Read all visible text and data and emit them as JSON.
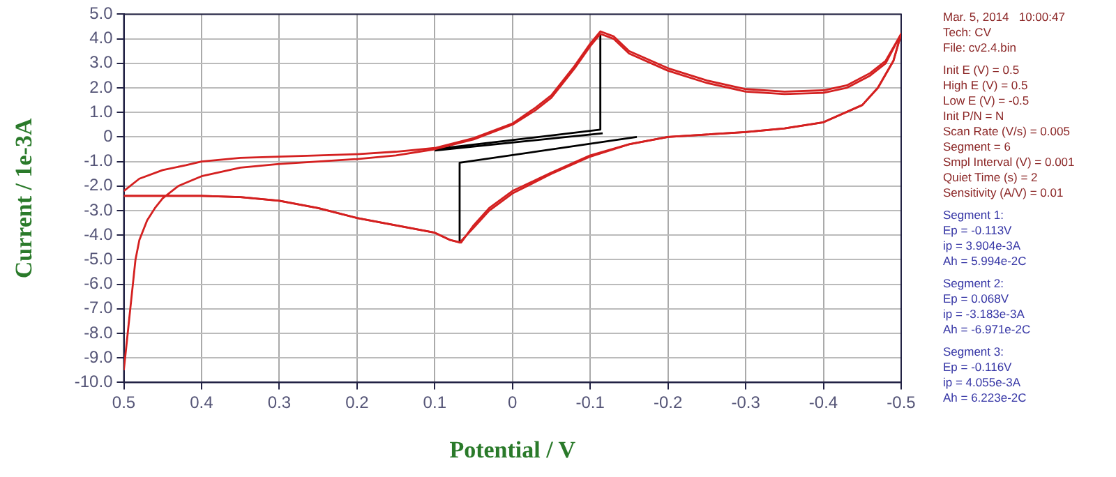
{
  "chart_data": {
    "type": "line",
    "xlabel": "Potential / V",
    "ylabel": "Current / 1e-3A",
    "xlim": [
      0.5,
      -0.5
    ],
    "xticks": [
      0.5,
      0.4,
      0.3,
      0.2,
      0.1,
      0,
      -0.1,
      -0.2,
      -0.3,
      -0.4,
      -0.5
    ],
    "ylim": [
      -10,
      5
    ],
    "yticks": [
      {
        "value": 5,
        "label": "5.0"
      },
      {
        "value": 4,
        "label": "4.0"
      },
      {
        "value": 3,
        "label": "3.0"
      },
      {
        "value": 2,
        "label": "2.0"
      },
      {
        "value": 1,
        "label": "1.0"
      },
      0,
      {
        "value": -1,
        "label": "-1.0"
      },
      {
        "value": -2,
        "label": "-2.0"
      },
      {
        "value": -3,
        "label": "-3.0"
      },
      {
        "value": -4,
        "label": "-4.0"
      },
      {
        "value": -5,
        "label": "-5.0"
      },
      {
        "value": -6,
        "label": "-6.0"
      },
      {
        "value": -7,
        "label": "-7.0"
      },
      {
        "value": -8,
        "label": "-8.0"
      },
      {
        "value": -9,
        "label": "-9.0"
      },
      {
        "value": -10,
        "label": "-10.0"
      }
    ],
    "grid": true,
    "legend": false,
    "marker": "none",
    "line_style": "solid",
    "series": [
      {
        "color": "#d42020",
        "x": [
          0.5,
          0.495,
          0.49,
          0.485,
          0.48,
          0.47,
          0.46,
          0.45,
          0.43,
          0.4,
          0.35,
          0.3,
          0.25,
          0.2,
          0.15,
          0.1,
          0.05,
          0,
          -0.03,
          -0.05,
          -0.08,
          -0.1,
          -0.113,
          -0.13,
          -0.15,
          -0.2,
          -0.25,
          -0.3,
          -0.35,
          -0.4,
          -0.43,
          -0.46,
          -0.48,
          -0.5,
          -0.49,
          -0.47,
          -0.45,
          -0.4,
          -0.35,
          -0.3,
          -0.25,
          -0.2,
          -0.15,
          -0.1,
          -0.05,
          0,
          0.03,
          0.05,
          0.068,
          0.08,
          0.1,
          0.15,
          0.2,
          0.25,
          0.3,
          0.35,
          0.4,
          0.45,
          0.5
        ],
        "values": [
          -9.5,
          -8,
          -6.5,
          -5,
          -4.2,
          -3.4,
          -2.9,
          -2.5,
          -2,
          -1.6,
          -1.25,
          -1.1,
          -1,
          -0.9,
          -0.75,
          -0.5,
          -0.1,
          0.5,
          1.1,
          1.6,
          2.8,
          3.7,
          4.2,
          4,
          3.4,
          2.7,
          2.2,
          1.85,
          1.75,
          1.8,
          2,
          2.5,
          3,
          4.2,
          3.1,
          2,
          1.3,
          0.6,
          0.35,
          0.2,
          0.1,
          0,
          -0.3,
          -0.8,
          -1.5,
          -2.3,
          -3,
          -3.7,
          -4.3,
          -4.2,
          -3.9,
          -3.6,
          -3.3,
          -2.9,
          -2.6,
          -2.45,
          -2.4,
          -2.4,
          -2.4
        ]
      },
      {
        "color": "#d42020",
        "x": [
          0.5,
          0.48,
          0.45,
          0.42,
          0.4,
          0.35,
          0.3,
          0.25,
          0.2,
          0.15,
          0.1,
          0.05,
          0,
          -0.03,
          -0.05,
          -0.08,
          -0.1,
          -0.113,
          -0.13,
          -0.15,
          -0.2,
          -0.25,
          -0.3,
          -0.35,
          -0.4,
          -0.43,
          -0.46,
          -0.48,
          -0.5,
          -0.49,
          -0.47,
          -0.45,
          -0.4,
          -0.35,
          -0.3,
          -0.25,
          -0.2,
          -0.15,
          -0.1,
          -0.05,
          0,
          0.03,
          0.05,
          0.066,
          0.08,
          0.1,
          0.15,
          0.2,
          0.25,
          0.3,
          0.35,
          0.4,
          0.45,
          0.5
        ],
        "values": [
          -2.2,
          -1.7,
          -1.35,
          -1.15,
          -1,
          -0.85,
          -0.8,
          -0.75,
          -0.7,
          -0.6,
          -0.45,
          -0.05,
          0.55,
          1.2,
          1.7,
          2.9,
          3.8,
          4.3,
          4.1,
          3.5,
          2.8,
          2.3,
          1.95,
          1.85,
          1.9,
          2.1,
          2.6,
          3.1,
          4.2,
          3.1,
          2,
          1.3,
          0.6,
          0.35,
          0.2,
          0.1,
          0,
          -0.3,
          -0.75,
          -1.45,
          -2.2,
          -2.9,
          -3.6,
          -4.3,
          -4.2,
          -3.9,
          -3.6,
          -3.3,
          -2.9,
          -2.6,
          -2.45,
          -2.4,
          -2.4,
          -2.4
        ]
      },
      {
        "color": "#000000",
        "x": [
          0.1,
          -0.113,
          -0.113
        ],
        "values": [
          -0.5,
          0.3,
          4.2
        ]
      },
      {
        "color": "#000000",
        "x": [
          -0.16,
          0.068,
          0.068
        ],
        "values": [
          0,
          -1.05,
          -4.3
        ]
      },
      {
        "color": "#000000",
        "x": [
          0.1,
          -0.116
        ],
        "values": [
          -0.55,
          0.15
        ]
      }
    ],
    "annotations": [
      "Mar. 5, 2014   10:00:47\nTech: CV\nFile: cv2.4.bin",
      "Init E (V) = 0.5\nHigh E (V) = 0.5\nLow E (V) = -0.5\nInit P/N = N\nScan Rate (V/s) = 0.005\nSegment = 6\nSmpl Interval (V) = 0.001\nQuiet Time (s) = 2\nSensitivity (A/V) = 0.01",
      "Segment 1:\nEp = -0.113V\nip = 3.904e-3A\nAh = 5.994e-2C",
      "Segment 2:\nEp = 0.068V\nip = -3.183e-3A\nAh = -6.971e-2C",
      "Segment 3:\nEp = -0.116V\nip = 4.055e-3A\nAh = 6.223e-2C"
    ]
  }
}
